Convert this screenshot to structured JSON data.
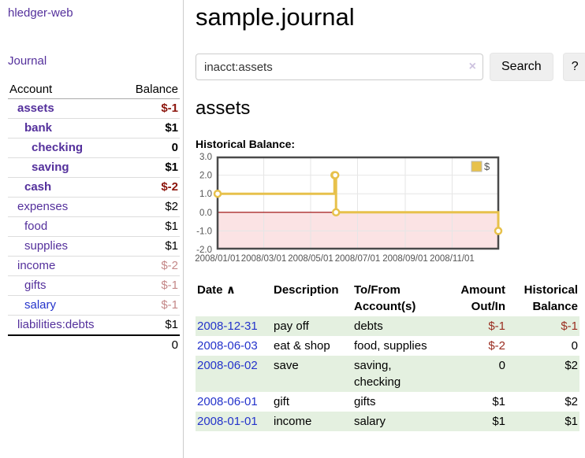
{
  "app": {
    "brand": "hledger-web",
    "nav_journal": "Journal"
  },
  "colors": {
    "link_purple": "#54309C",
    "link_blue": "#2433CB",
    "negative_strong": "#8C150C",
    "negative_soft": "#C48888",
    "negative": "#9A2D20",
    "row_green": "#E4F0E0",
    "chart_gold": "#E7C14B",
    "chart_pink": "#FBE3E4",
    "chart_zero_line": "#990000",
    "chart_border": "#4A4A4A",
    "chart_grid": "#E6E6E6",
    "axis_text": "#545454",
    "button_bg": "#EFEFEF",
    "input_border": "#CCCCCC",
    "clear_icon": "#CDC2DF",
    "divider": "#CCCCCC",
    "row_separator": "#DDDDDD",
    "header_separator": "#AAAAAA"
  },
  "sidebar": {
    "account_header": "Account",
    "balance_header": "Balance",
    "accounts": [
      {
        "name": "assets",
        "depth": 1,
        "bold": true,
        "balance": "$-1"
      },
      {
        "name": "bank",
        "depth": 2,
        "bold": true,
        "balance": "$1"
      },
      {
        "name": "checking",
        "depth": 3,
        "bold": true,
        "balance": "0"
      },
      {
        "name": "saving",
        "depth": 3,
        "bold": true,
        "balance": "$1"
      },
      {
        "name": "cash",
        "depth": 2,
        "bold": true,
        "balance": "$-2"
      },
      {
        "name": "expenses",
        "depth": 1,
        "bold": false,
        "balance": "$2"
      },
      {
        "name": "food",
        "depth": 2,
        "bold": false,
        "balance": "$1"
      },
      {
        "name": "supplies",
        "depth": 2,
        "bold": false,
        "balance": "$1"
      },
      {
        "name": "income",
        "depth": 1,
        "bold": false,
        "balance": "$-2"
      },
      {
        "name": "gifts",
        "depth": 2,
        "bold": false,
        "balance": "$-1"
      },
      {
        "name": "salary",
        "depth": 2,
        "bold": false,
        "balance": "$-1"
      },
      {
        "name": "liabilities:debts",
        "depth": 1,
        "bold": false,
        "balance": "$1"
      }
    ],
    "total": "0"
  },
  "header": {
    "title": "sample.journal"
  },
  "search": {
    "value": "inacct:assets",
    "clear_icon": "×",
    "button": "Search",
    "help_button": "?"
  },
  "account_page": {
    "title": "assets",
    "chart_label": "Historical Balance:"
  },
  "chart_data": {
    "type": "line",
    "style": "step-after",
    "title": "Historical Balance",
    "legend_position": "top-right",
    "grid": true,
    "ylim": [
      -2,
      3
    ],
    "y_ticks": [
      "3.0",
      "2.0",
      "1.0",
      "0.0",
      "-1.0",
      "-2.0"
    ],
    "x_ticks": [
      "2008/01/01",
      "2008/03/01",
      "2008/05/01",
      "2008/07/01",
      "2008/09/01",
      "2008/11/01"
    ],
    "series": [
      {
        "name": "$",
        "color": "#E7C14B",
        "points": [
          [
            "2008-01-01",
            1
          ],
          [
            "2008-06-01",
            2
          ],
          [
            "2008-06-02",
            2
          ],
          [
            "2008-06-03",
            0
          ],
          [
            "2008-12-31",
            -1
          ]
        ]
      }
    ],
    "negative_region_shaded": true
  },
  "register": {
    "header": {
      "date": "Date",
      "sort_arrow": "∧",
      "description": "Description",
      "accounts": "To/From Account(s)",
      "amount": "Amount Out/In",
      "balance": "Historical Balance"
    },
    "rows": [
      {
        "date": "2008-12-31",
        "description": "pay off",
        "accounts": "debts",
        "amount": "$-1",
        "balance": "$-1"
      },
      {
        "date": "2008-06-03",
        "description": "eat & shop",
        "accounts": "food, supplies",
        "amount": "$-2",
        "balance": "0"
      },
      {
        "date": "2008-06-02",
        "description": "save",
        "accounts": "saving, checking",
        "amount": "0",
        "balance": "$2"
      },
      {
        "date": "2008-06-01",
        "description": "gift",
        "accounts": "gifts",
        "amount": "$1",
        "balance": "$2"
      },
      {
        "date": "2008-01-01",
        "description": "income",
        "accounts": "salary",
        "amount": "$1",
        "balance": "$1"
      }
    ]
  }
}
